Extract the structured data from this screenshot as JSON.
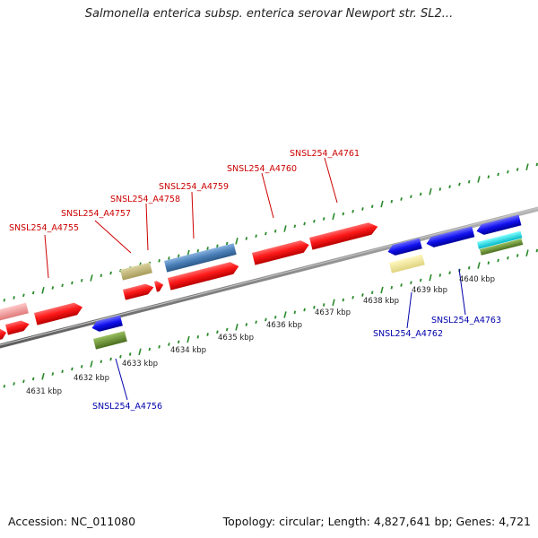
{
  "title": "Salmonella enterica subsp. enterica serovar Newport str. SL2...",
  "footer": {
    "accession": "Accession: NC_011080",
    "topology": "Topology: circular; Length: 4,827,641 bp; Genes: 4,721"
  },
  "colors": {
    "backbone": "#8a8a8a",
    "tick_dots": "#2a8a2a",
    "forward_label": "#cc0000",
    "reverse_label": "#0000aa"
  },
  "scale_labels": [
    "4631 kbp",
    "4632 kbp",
    "4633 kbp",
    "4634 kbp",
    "4635 kbp",
    "4636 kbp",
    "4637 kbp",
    "4638 kbp",
    "4639 kbp",
    "4640 kbp"
  ],
  "gene_labels": {
    "forward": [
      "SNSL254_A4755",
      "SNSL254_A4757",
      "SNSL254_A4758",
      "SNSL254_A4759",
      "SNSL254_A4760",
      "SNSL254_A4761"
    ],
    "reverse": [
      "SNSL254_A4756",
      "SNSL254_A4762",
      "SNSL254_A4763"
    ]
  }
}
